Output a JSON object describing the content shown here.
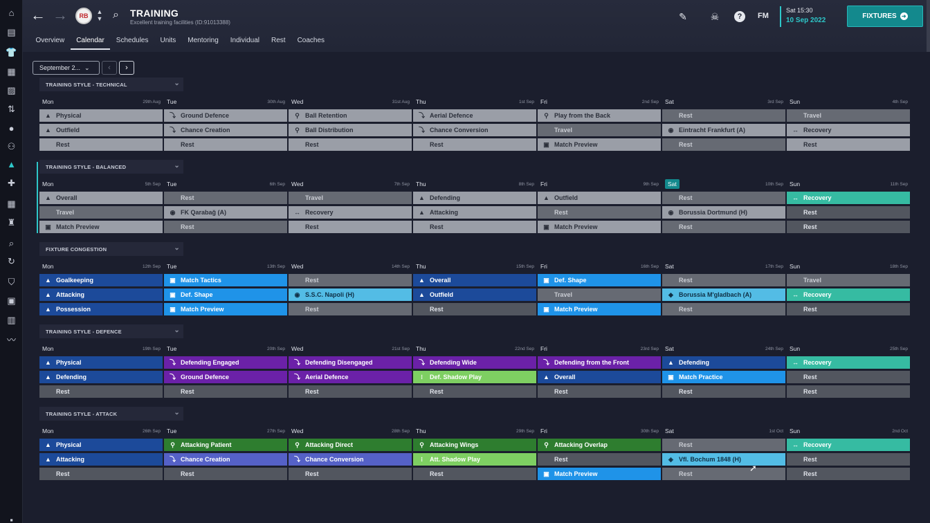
{
  "sidebar": {
    "items": [
      {
        "icon": "home-icon",
        "glyph": "⌂"
      },
      {
        "icon": "inbox-icon",
        "glyph": "▤"
      },
      {
        "icon": "squad-shirt-icon",
        "glyph": "👕"
      },
      {
        "icon": "dynamics-icon",
        "glyph": "▦"
      },
      {
        "icon": "clipboard-icon",
        "glyph": "▨"
      },
      {
        "icon": "transfers-icon",
        "glyph": "⇅"
      },
      {
        "icon": "ball-icon",
        "glyph": "●"
      },
      {
        "icon": "staff-icon",
        "glyph": "⚇"
      },
      {
        "icon": "training-icon",
        "glyph": "▲",
        "active": true
      },
      {
        "icon": "medical-icon",
        "glyph": "✚"
      },
      {
        "icon": "schedule-icon",
        "glyph": "▦"
      },
      {
        "icon": "trophy-icon",
        "glyph": "♜"
      },
      {
        "icon": "scouting-icon",
        "glyph": "⌕"
      },
      {
        "icon": "refresh-icon",
        "glyph": "↻"
      },
      {
        "icon": "club-vision-icon",
        "glyph": "⛉"
      },
      {
        "icon": "briefcase-icon",
        "glyph": "▣"
      },
      {
        "icon": "finances-icon",
        "glyph": "▥"
      },
      {
        "icon": "trend-icon",
        "glyph": "〰"
      },
      {
        "icon": "settings-icon",
        "glyph": "▪"
      }
    ]
  },
  "header": {
    "badge_text": "RB",
    "title": "TRAINING",
    "subtitle": "Excellent training facilities (ID:91013388)",
    "fm": "FM",
    "date_time": "Sat 15:30",
    "date_day": "10 Sep 2022",
    "fixtures_label": "FIXTURES",
    "tabs": [
      "Overview",
      "Calendar",
      "Schedules",
      "Units",
      "Mentoring",
      "Individual",
      "Rest",
      "Coaches"
    ],
    "active_tab": "Calendar"
  },
  "controls": {
    "month": "September 2...",
    "prev": "‹",
    "next": "›"
  },
  "colors": {
    "accent": "#2ec7c9",
    "fixtures_button": "#13898d",
    "rest": "#52565f",
    "match_day": "#9a9ea7",
    "dark_blue": "#1c4a9a",
    "light_blue": "#1f93e8",
    "teal": "#36bba2",
    "purple": "#6b21a8",
    "green": "#2e7d2f",
    "light_green": "#7ecf62",
    "indigo": "#5561c7"
  },
  "weeks": [
    {
      "title": "TRAINING STYLE - TECHNICAL",
      "days": [
        {
          "day": "Mon",
          "date": "29th Aug",
          "slots": [
            {
              "t": "Physical",
              "c": "match",
              "i": "▲"
            },
            {
              "t": "Outfield",
              "c": "match",
              "i": "▲"
            },
            {
              "t": "Rest",
              "c": "match",
              "i": ""
            }
          ]
        },
        {
          "day": "Tue",
          "date": "30th Aug",
          "slots": [
            {
              "t": "Ground Defence",
              "c": "match",
              "i": "⤵"
            },
            {
              "t": "Chance Creation",
              "c": "match",
              "i": "⤵"
            },
            {
              "t": "Rest",
              "c": "match",
              "i": ""
            }
          ]
        },
        {
          "day": "Wed",
          "date": "31st Aug",
          "slots": [
            {
              "t": "Ball Retention",
              "c": "match",
              "i": "⚲"
            },
            {
              "t": "Ball Distribution",
              "c": "match",
              "i": "⚲"
            },
            {
              "t": "Rest",
              "c": "match",
              "i": ""
            }
          ]
        },
        {
          "day": "Thu",
          "date": "1st Sep",
          "slots": [
            {
              "t": "Aerial Defence",
              "c": "match",
              "i": "⤵"
            },
            {
              "t": "Chance Conversion",
              "c": "match",
              "i": "⤵"
            },
            {
              "t": "Rest",
              "c": "match",
              "i": ""
            }
          ]
        },
        {
          "day": "Fri",
          "date": "2nd Sep",
          "slots": [
            {
              "t": "Play from the Back",
              "c": "match",
              "i": "⚲"
            },
            {
              "t": "Travel",
              "c": "gray",
              "i": ""
            },
            {
              "t": "Match Preview",
              "c": "match",
              "i": "▣"
            }
          ]
        },
        {
          "day": "Sat",
          "date": "3rd Sep",
          "slots": [
            {
              "t": "Rest",
              "c": "gray",
              "i": ""
            },
            {
              "t": "Eintracht Frankfurt (A)",
              "c": "match",
              "i": "◉"
            },
            {
              "t": "Rest",
              "c": "gray",
              "i": ""
            }
          ]
        },
        {
          "day": "Sun",
          "date": "4th Sep",
          "slots": [
            {
              "t": "Travel",
              "c": "gray",
              "i": ""
            },
            {
              "t": "Recovery",
              "c": "match",
              "i": "↔"
            },
            {
              "t": "Rest",
              "c": "match",
              "i": ""
            }
          ]
        }
      ]
    },
    {
      "title": "TRAINING STYLE - BALANCED",
      "days": [
        {
          "day": "Mon",
          "date": "5th Sep",
          "slots": [
            {
              "t": "Overall",
              "c": "match",
              "i": "▲"
            },
            {
              "t": "Travel",
              "c": "gray",
              "i": ""
            },
            {
              "t": "Match Preview",
              "c": "match",
              "i": "▣"
            }
          ]
        },
        {
          "day": "Tue",
          "date": "6th Sep",
          "slots": [
            {
              "t": "Rest",
              "c": "gray",
              "i": ""
            },
            {
              "t": "FK Qarabağ (A)",
              "c": "match",
              "i": "◉"
            },
            {
              "t": "Rest",
              "c": "gray",
              "i": ""
            }
          ]
        },
        {
          "day": "Wed",
          "date": "7th Sep",
          "slots": [
            {
              "t": "Travel",
              "c": "gray",
              "i": ""
            },
            {
              "t": "Recovery",
              "c": "match",
              "i": "↔"
            },
            {
              "t": "Rest",
              "c": "match",
              "i": ""
            }
          ]
        },
        {
          "day": "Thu",
          "date": "8th Sep",
          "slots": [
            {
              "t": "Defending",
              "c": "match",
              "i": "▲"
            },
            {
              "t": "Attacking",
              "c": "match",
              "i": "▲"
            },
            {
              "t": "Rest",
              "c": "match",
              "i": ""
            }
          ]
        },
        {
          "day": "Fri",
          "date": "9th Sep",
          "slots": [
            {
              "t": "Outfield",
              "c": "match",
              "i": "▲"
            },
            {
              "t": "Rest",
              "c": "gray",
              "i": ""
            },
            {
              "t": "Match Preview",
              "c": "match",
              "i": "▣"
            }
          ]
        },
        {
          "day": "Sat",
          "date": "10th Sep",
          "today": true,
          "slots": [
            {
              "t": "Rest",
              "c": "gray",
              "i": ""
            },
            {
              "t": "Borussia Dortmund (H)",
              "c": "match",
              "i": "◉"
            },
            {
              "t": "Rest",
              "c": "gray",
              "i": ""
            }
          ]
        },
        {
          "day": "Sun",
          "date": "11th Sep",
          "slots": [
            {
              "t": "Recovery",
              "c": "teal",
              "i": "↔"
            },
            {
              "t": "Rest",
              "c": "rest",
              "i": ""
            },
            {
              "t": "Rest",
              "c": "rest",
              "i": ""
            }
          ]
        }
      ]
    },
    {
      "title": "FIXTURE CONGESTION",
      "days": [
        {
          "day": "Mon",
          "date": "12th Sep",
          "slots": [
            {
              "t": "Goalkeeping",
              "c": "blue",
              "i": "▲"
            },
            {
              "t": "Attacking",
              "c": "blue",
              "i": "▲"
            },
            {
              "t": "Possession",
              "c": "blue",
              "i": "▲"
            }
          ]
        },
        {
          "day": "Tue",
          "date": "13th Sep",
          "slots": [
            {
              "t": "Match Tactics",
              "c": "lblue",
              "i": "▣"
            },
            {
              "t": "Def. Shape",
              "c": "lblue",
              "i": "▣"
            },
            {
              "t": "Match Preview",
              "c": "lblue",
              "i": "▣"
            }
          ]
        },
        {
          "day": "Wed",
          "date": "14th Sep",
          "slots": [
            {
              "t": "Rest",
              "c": "gray",
              "i": ""
            },
            {
              "t": "S.S.C. Napoli (H)",
              "c": "sky",
              "i": "◉"
            },
            {
              "t": "Rest",
              "c": "gray",
              "i": ""
            }
          ]
        },
        {
          "day": "Thu",
          "date": "15th Sep",
          "slots": [
            {
              "t": "Overall",
              "c": "blue",
              "i": "▲"
            },
            {
              "t": "Outfield",
              "c": "blue",
              "i": "▲"
            },
            {
              "t": "Rest",
              "c": "rest",
              "i": ""
            }
          ]
        },
        {
          "day": "Fri",
          "date": "16th Sep",
          "slots": [
            {
              "t": "Def. Shape",
              "c": "lblue",
              "i": "▣"
            },
            {
              "t": "Travel",
              "c": "gray",
              "i": ""
            },
            {
              "t": "Match Preview",
              "c": "lblue",
              "i": "▣"
            }
          ]
        },
        {
          "day": "Sat",
          "date": "17th Sep",
          "slots": [
            {
              "t": "Rest",
              "c": "gray",
              "i": ""
            },
            {
              "t": "Borussia M'gladbach (A)",
              "c": "sky",
              "i": "◆"
            },
            {
              "t": "Rest",
              "c": "gray",
              "i": ""
            }
          ]
        },
        {
          "day": "Sun",
          "date": "18th Sep",
          "slots": [
            {
              "t": "Travel",
              "c": "gray",
              "i": ""
            },
            {
              "t": "Recovery",
              "c": "teal",
              "i": "↔"
            },
            {
              "t": "Rest",
              "c": "rest",
              "i": ""
            }
          ]
        }
      ]
    },
    {
      "title": "TRAINING STYLE - DEFENCE",
      "days": [
        {
          "day": "Mon",
          "date": "19th Sep",
          "slots": [
            {
              "t": "Physical",
              "c": "blue",
              "i": "▲"
            },
            {
              "t": "Defending",
              "c": "blue",
              "i": "▲"
            },
            {
              "t": "Rest",
              "c": "rest",
              "i": ""
            }
          ]
        },
        {
          "day": "Tue",
          "date": "20th Sep",
          "slots": [
            {
              "t": "Defending Engaged",
              "c": "purple",
              "i": "⤵"
            },
            {
              "t": "Ground Defence",
              "c": "purple",
              "i": "⤵"
            },
            {
              "t": "Rest",
              "c": "rest",
              "i": ""
            }
          ]
        },
        {
          "day": "Wed",
          "date": "21st Sep",
          "slots": [
            {
              "t": "Defending Disengaged",
              "c": "purple",
              "i": "⤵"
            },
            {
              "t": "Aerial Defence",
              "c": "purple",
              "i": "⤵"
            },
            {
              "t": "Rest",
              "c": "rest",
              "i": ""
            }
          ]
        },
        {
          "day": "Thu",
          "date": "22nd Sep",
          "slots": [
            {
              "t": "Defending Wide",
              "c": "purple",
              "i": "⤵"
            },
            {
              "t": "Def. Shadow Play",
              "c": "lgreen",
              "i": "⁝"
            },
            {
              "t": "Rest",
              "c": "rest",
              "i": ""
            }
          ]
        },
        {
          "day": "Fri",
          "date": "23rd Sep",
          "slots": [
            {
              "t": "Defending from the Front",
              "c": "purple",
              "i": "⤵"
            },
            {
              "t": "Overall",
              "c": "blue",
              "i": "▲"
            },
            {
              "t": "Rest",
              "c": "rest",
              "i": ""
            }
          ]
        },
        {
          "day": "Sat",
          "date": "24th Sep",
          "slots": [
            {
              "t": "Defending",
              "c": "blue",
              "i": "▲"
            },
            {
              "t": "Match Practice",
              "c": "lblue",
              "i": "▣"
            },
            {
              "t": "Rest",
              "c": "rest",
              "i": ""
            }
          ]
        },
        {
          "day": "Sun",
          "date": "25th Sep",
          "slots": [
            {
              "t": "Recovery",
              "c": "teal",
              "i": "↔"
            },
            {
              "t": "Rest",
              "c": "rest",
              "i": ""
            },
            {
              "t": "Rest",
              "c": "rest",
              "i": ""
            }
          ]
        }
      ]
    },
    {
      "title": "TRAINING STYLE - ATTACK",
      "days": [
        {
          "day": "Mon",
          "date": "26th Sep",
          "slots": [
            {
              "t": "Physical",
              "c": "blue",
              "i": "▲"
            },
            {
              "t": "Attacking",
              "c": "blue",
              "i": "▲"
            },
            {
              "t": "Rest",
              "c": "rest",
              "i": ""
            }
          ]
        },
        {
          "day": "Tue",
          "date": "27th Sep",
          "slots": [
            {
              "t": "Attacking Patient",
              "c": "green",
              "i": "⚲"
            },
            {
              "t": "Chance Creation",
              "c": "indigo",
              "i": "⤵"
            },
            {
              "t": "Rest",
              "c": "rest",
              "i": ""
            }
          ]
        },
        {
          "day": "Wed",
          "date": "28th Sep",
          "slots": [
            {
              "t": "Attacking Direct",
              "c": "green",
              "i": "⚲"
            },
            {
              "t": "Chance Conversion",
              "c": "indigo",
              "i": "⤵"
            },
            {
              "t": "Rest",
              "c": "rest",
              "i": ""
            }
          ]
        },
        {
          "day": "Thu",
          "date": "29th Sep",
          "slots": [
            {
              "t": "Attacking Wings",
              "c": "green",
              "i": "⚲"
            },
            {
              "t": "Att. Shadow Play",
              "c": "lgreen",
              "i": "⁝"
            },
            {
              "t": "Rest",
              "c": "rest",
              "i": ""
            }
          ]
        },
        {
          "day": "Fri",
          "date": "30th Sep",
          "slots": [
            {
              "t": "Attacking Overlap",
              "c": "green",
              "i": "⚲"
            },
            {
              "t": "Rest",
              "c": "rest",
              "i": ""
            },
            {
              "t": "Match Preview",
              "c": "lblue",
              "i": "▣"
            }
          ]
        },
        {
          "day": "Sat",
          "date": "1st Oct",
          "slots": [
            {
              "t": "Rest",
              "c": "gray",
              "i": ""
            },
            {
              "t": "Vfl. Bochum 1848 (H)",
              "c": "sky",
              "i": "◈"
            },
            {
              "t": "Rest",
              "c": "gray",
              "i": ""
            }
          ]
        },
        {
          "day": "Sun",
          "date": "2nd Oct",
          "slots": [
            {
              "t": "Recovery",
              "c": "teal",
              "i": "↔"
            },
            {
              "t": "Rest",
              "c": "rest",
              "i": ""
            },
            {
              "t": "Rest",
              "c": "rest",
              "i": ""
            }
          ]
        }
      ]
    }
  ]
}
